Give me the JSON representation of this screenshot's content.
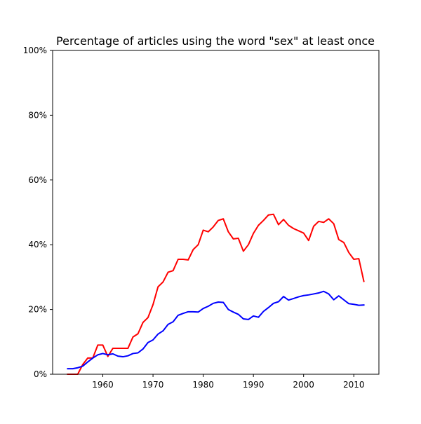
{
  "chart_data": {
    "type": "line",
    "title": "Percentage of articles using the word \"sex\" at least once",
    "xlabel": "",
    "ylabel": "",
    "xlim": [
      1950,
      2015
    ],
    "ylim": [
      0,
      100
    ],
    "x_ticks": [
      1960,
      1970,
      1980,
      1990,
      2000,
      2010
    ],
    "x_tick_labels": [
      "1960",
      "1970",
      "1980",
      "1990",
      "2000",
      "2010"
    ],
    "y_ticks": [
      0,
      20,
      40,
      60,
      80,
      100
    ],
    "y_tick_labels": [
      "0%",
      "20%",
      "40%",
      "60%",
      "80%",
      "100%"
    ],
    "grid": false,
    "legend": "none",
    "x": [
      1953,
      1954,
      1955,
      1956,
      1957,
      1958,
      1959,
      1960,
      1961,
      1962,
      1963,
      1964,
      1965,
      1966,
      1967,
      1968,
      1969,
      1970,
      1971,
      1972,
      1973,
      1974,
      1975,
      1976,
      1977,
      1978,
      1979,
      1980,
      1981,
      1982,
      1983,
      1984,
      1985,
      1986,
      1987,
      1988,
      1989,
      1990,
      1991,
      1992,
      1993,
      1994,
      1995,
      1996,
      1997,
      1998,
      1999,
      2000,
      2001,
      2002,
      2003,
      2004,
      2005,
      2006,
      2007,
      2008,
      2009,
      2010,
      2011,
      2012
    ],
    "series": [
      {
        "color": "#ff0000",
        "values": [
          0.0,
          0.0,
          0.0,
          3.0,
          5.0,
          5.0,
          9.0,
          9.0,
          5.5,
          8.0,
          8.0,
          8.0,
          8.0,
          11.5,
          12.5,
          16.0,
          17.5,
          21.5,
          27.0,
          28.5,
          31.5,
          32.0,
          35.5,
          35.5,
          35.3,
          38.5,
          40.0,
          44.5,
          44.0,
          45.5,
          47.5,
          48.0,
          44.0,
          41.8,
          42.0,
          38.0,
          40.0,
          43.5,
          46.0,
          47.5,
          49.2,
          49.4,
          46.2,
          47.8,
          46.0,
          45.0,
          44.3,
          43.6,
          41.3,
          45.7,
          47.2,
          46.9,
          48.0,
          46.5,
          41.6,
          40.7,
          37.6,
          35.5,
          35.7,
          28.7
        ]
      },
      {
        "color": "#0000ff",
        "values": [
          1.7,
          1.7,
          2.0,
          2.5,
          3.8,
          5.0,
          6.0,
          6.4,
          6.0,
          6.3,
          5.6,
          5.4,
          5.7,
          6.4,
          6.6,
          7.8,
          9.8,
          10.6,
          12.4,
          13.4,
          15.4,
          16.2,
          18.2,
          18.8,
          19.3,
          19.3,
          19.2,
          20.3,
          21.0,
          21.9,
          22.3,
          22.2,
          20.0,
          19.2,
          18.5,
          17.1,
          16.9,
          18.0,
          17.6,
          19.4,
          20.6,
          21.9,
          22.4,
          24.0,
          22.9,
          23.4,
          23.9,
          24.3,
          24.5,
          24.8,
          25.1,
          25.6,
          24.8,
          23.0,
          24.2,
          23.0,
          21.8,
          21.6,
          21.3,
          21.4
        ]
      }
    ]
  }
}
